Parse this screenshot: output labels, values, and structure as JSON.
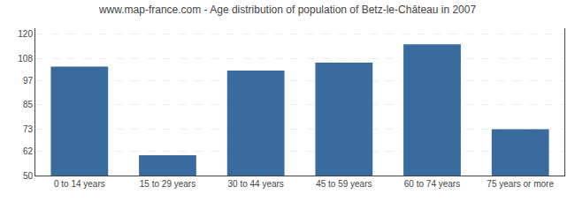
{
  "chart_data": {
    "type": "bar",
    "title": "www.map-france.com - Age distribution of population of Betz-le-Château in 2007",
    "categories": [
      "0 to 14 years",
      "15 to 29 years",
      "30 to 44 years",
      "45 to 59 years",
      "60 to 74 years",
      "75 years or more"
    ],
    "values": [
      104,
      60,
      102,
      106,
      115,
      73
    ],
    "color": "#3a6b9e",
    "ylim": [
      50,
      123
    ],
    "yticks": [
      50,
      62,
      73,
      85,
      97,
      108,
      120
    ],
    "grid": true
  }
}
